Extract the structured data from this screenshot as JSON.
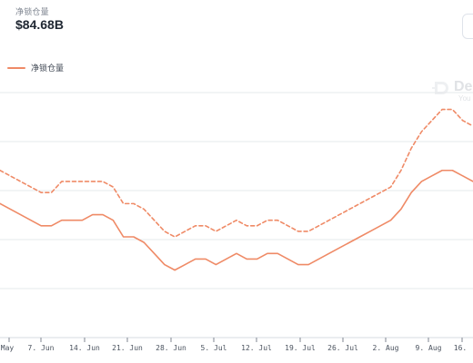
{
  "header": {
    "metric_label": "净锁仓量",
    "metric_value": "$84.68B"
  },
  "legend": {
    "label": "净锁仓量",
    "color": "#ef8a66"
  },
  "watermark": {
    "brand": "De",
    "sub": "You"
  },
  "icons": {
    "watermark_logo": "defillama-logo"
  },
  "colors": {
    "line_solid": "#ef8a66",
    "line_dashed": "#ef8a66",
    "grid": "#e6e8eb"
  },
  "chart_data": {
    "type": "line",
    "title": "",
    "xlabel": "",
    "ylabel": "",
    "grid": true,
    "legend_position": "top-left",
    "x_tick_labels": [
      "May",
      "7. Jun",
      "14. Jun",
      "21. Jun",
      "28. Jun",
      "5. Jul",
      "12. Jul",
      "19. Jul",
      "26. Jul",
      "2. Aug",
      "9. Aug",
      "16."
    ],
    "series": [
      {
        "name": "净锁仓量",
        "style": "solid",
        "color": "#ef8a66",
        "values": [
          0.73,
          0.72,
          0.71,
          0.7,
          0.69,
          0.69,
          0.7,
          0.7,
          0.7,
          0.71,
          0.71,
          0.7,
          0.67,
          0.67,
          0.66,
          0.64,
          0.62,
          0.61,
          0.62,
          0.63,
          0.63,
          0.62,
          0.63,
          0.64,
          0.63,
          0.63,
          0.64,
          0.64,
          0.63,
          0.62,
          0.62,
          0.63,
          0.64,
          0.65,
          0.66,
          0.67,
          0.68,
          0.69,
          0.7,
          0.72,
          0.75,
          0.77,
          0.78,
          0.79,
          0.79,
          0.78,
          0.77
        ]
      },
      {
        "name": "",
        "style": "dashed",
        "color": "#ef8a66",
        "values": [
          0.79,
          0.78,
          0.77,
          0.76,
          0.75,
          0.75,
          0.77,
          0.77,
          0.77,
          0.77,
          0.77,
          0.76,
          0.73,
          0.73,
          0.72,
          0.7,
          0.68,
          0.67,
          0.68,
          0.69,
          0.69,
          0.68,
          0.69,
          0.7,
          0.69,
          0.69,
          0.7,
          0.7,
          0.69,
          0.68,
          0.68,
          0.69,
          0.7,
          0.71,
          0.72,
          0.73,
          0.74,
          0.75,
          0.76,
          0.79,
          0.83,
          0.86,
          0.88,
          0.9,
          0.9,
          0.88,
          0.87
        ]
      }
    ]
  }
}
